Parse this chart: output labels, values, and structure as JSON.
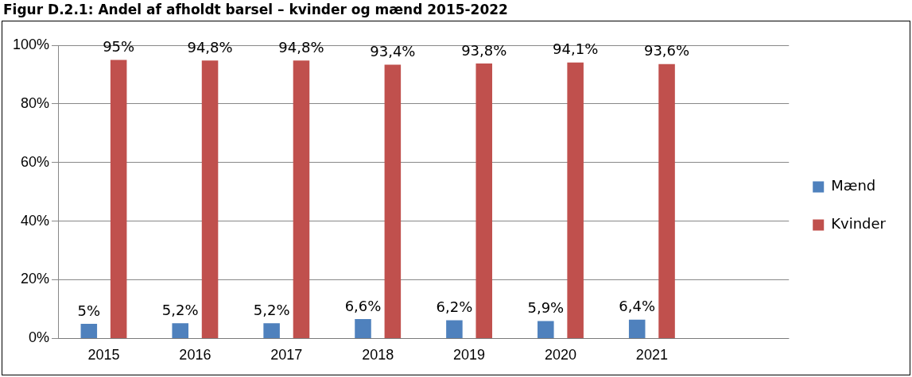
{
  "chart_data": {
    "type": "bar",
    "title": "Figur D.2.1: Andel af afholdt barsel – kvinder og mænd 2015-2022",
    "categories": [
      "2015",
      "2016",
      "2017",
      "2018",
      "2019",
      "2020",
      "2021",
      null
    ],
    "series": [
      {
        "name": "Mænd",
        "color": "#4f81bd",
        "values": [
          5,
          5.2,
          5.2,
          6.6,
          6.2,
          5.9,
          6.4,
          null
        ],
        "value_labels": [
          "5%",
          "5,2%",
          "5,2%",
          "6,6%",
          "6,2%",
          "5,9%",
          "6,4%",
          null
        ]
      },
      {
        "name": "Kvinder",
        "color": "#c0504d",
        "values": [
          95,
          94.8,
          94.8,
          93.4,
          93.8,
          94.1,
          93.6,
          null
        ],
        "value_labels": [
          "95%",
          "94,8%",
          "94,8%",
          "93,4%",
          "93,8%",
          "94,1%",
          "93,6%",
          null
        ]
      }
    ],
    "ylim": [
      0,
      100
    ],
    "yticks": [
      {
        "value": 0,
        "label": "0%"
      },
      {
        "value": 20,
        "label": "20%"
      },
      {
        "value": 40,
        "label": "40%"
      },
      {
        "value": 60,
        "label": "60%"
      },
      {
        "value": 80,
        "label": "80%"
      },
      {
        "value": 100,
        "label": "100%"
      }
    ],
    "grid": "y",
    "legend": "right"
  }
}
